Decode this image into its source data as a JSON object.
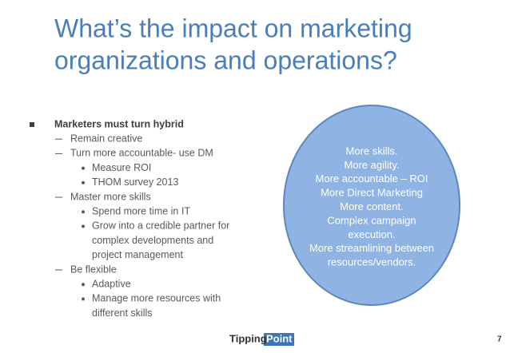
{
  "slide": {
    "title": [
      "What’s the impact on marketing",
      "organizations and operations?"
    ],
    "bullets": [
      {
        "level": 0,
        "lines": [
          "Marketers must turn hybrid"
        ]
      },
      {
        "level": 1,
        "lines": [
          "Remain creative"
        ]
      },
      {
        "level": 1,
        "lines": [
          "Turn more accountable- use DM"
        ]
      },
      {
        "level": 2,
        "lines": [
          "Measure ROI"
        ]
      },
      {
        "level": 2,
        "lines": [
          "THOM survey 2013"
        ]
      },
      {
        "level": 1,
        "lines": [
          "Master more skills"
        ]
      },
      {
        "level": 2,
        "lines": [
          "Spend more time in IT"
        ]
      },
      {
        "level": 2,
        "lines": [
          "Grow into a credible partner for",
          "complex developments and",
          "project management"
        ]
      },
      {
        "level": 1,
        "lines": [
          "Be flexible"
        ]
      },
      {
        "level": 2,
        "lines": [
          "Adaptive"
        ]
      },
      {
        "level": 2,
        "lines": [
          "Manage more resources with",
          "different skills"
        ]
      }
    ],
    "circle_lines": [
      "More skills.",
      "More agility.",
      "More accountable – ROI",
      "More Direct Marketing",
      "More content.",
      "Complex campaign",
      "execution.",
      "More streamlining between",
      "resources/vendors."
    ],
    "logo": {
      "first": "Tipping",
      "second": "Point"
    },
    "page_number": "7"
  }
}
